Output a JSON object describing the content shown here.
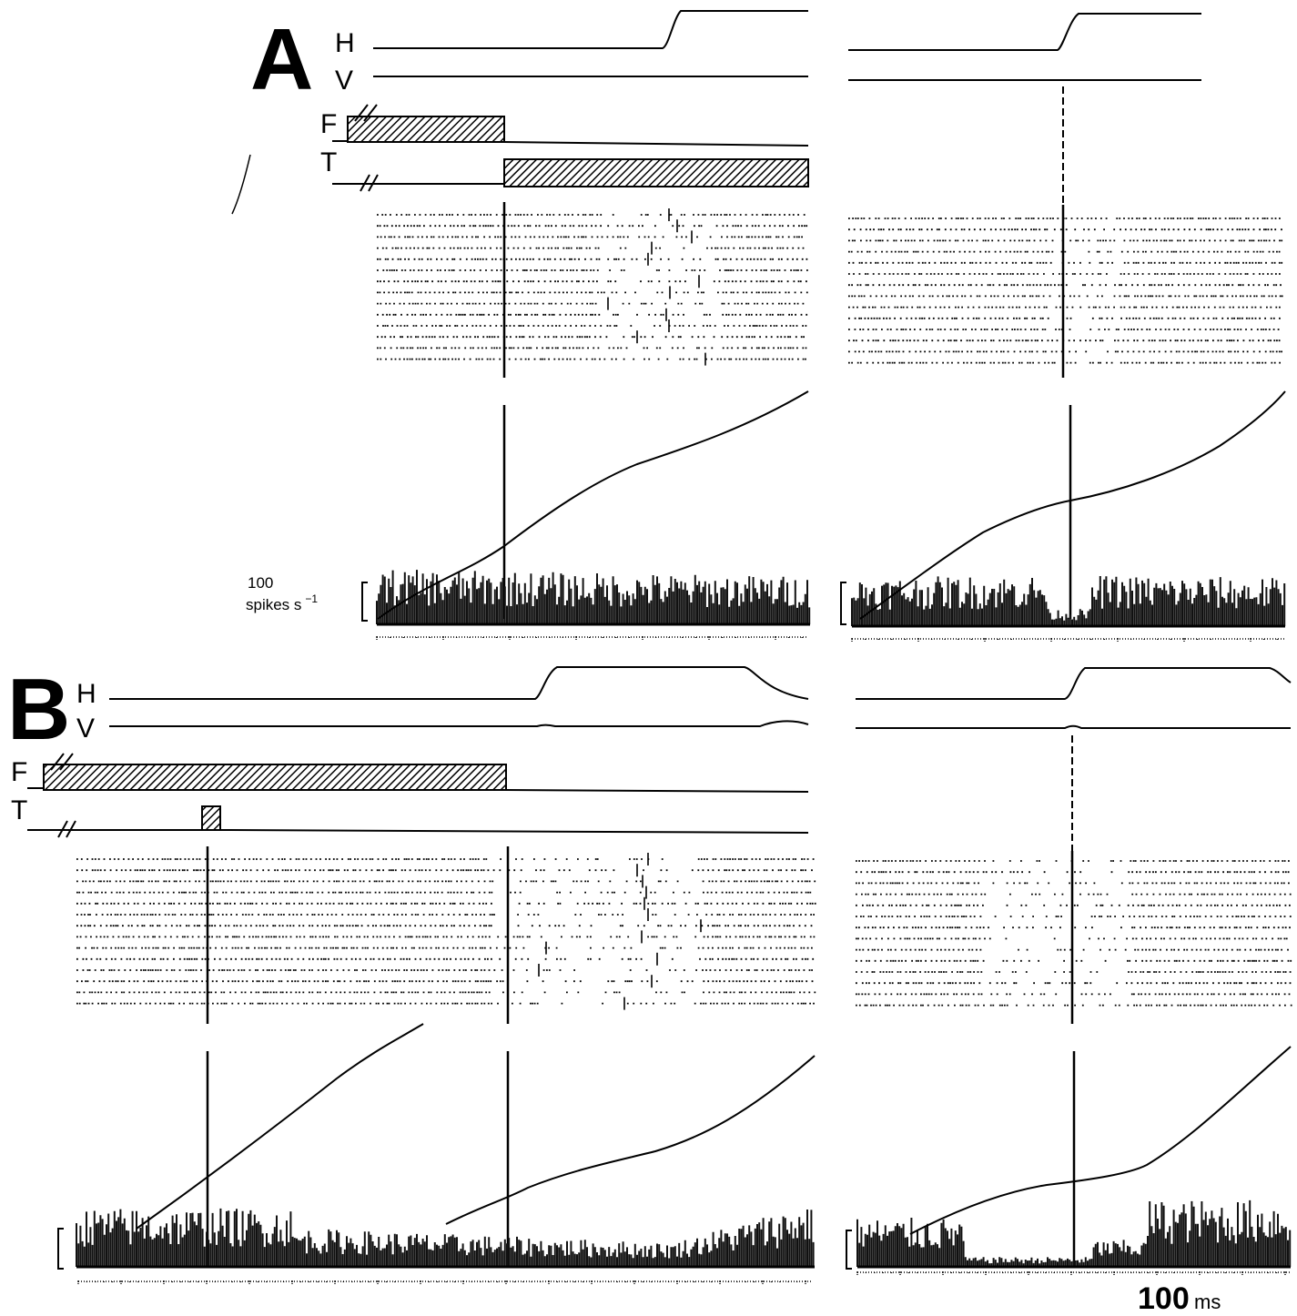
{
  "panelA": {
    "letter": "A",
    "labels": {
      "h": "H",
      "v": "V",
      "f": "F",
      "t": "T"
    },
    "scale_value": "100",
    "scale_unit": "spikes s",
    "scale_exp": "−1"
  },
  "panelB": {
    "letter": "B",
    "labels": {
      "h": "H",
      "v": "V",
      "f": "F",
      "t": "T"
    }
  },
  "time_scale": {
    "value": "100",
    "unit": "ms"
  },
  "raster_rows": 14
}
